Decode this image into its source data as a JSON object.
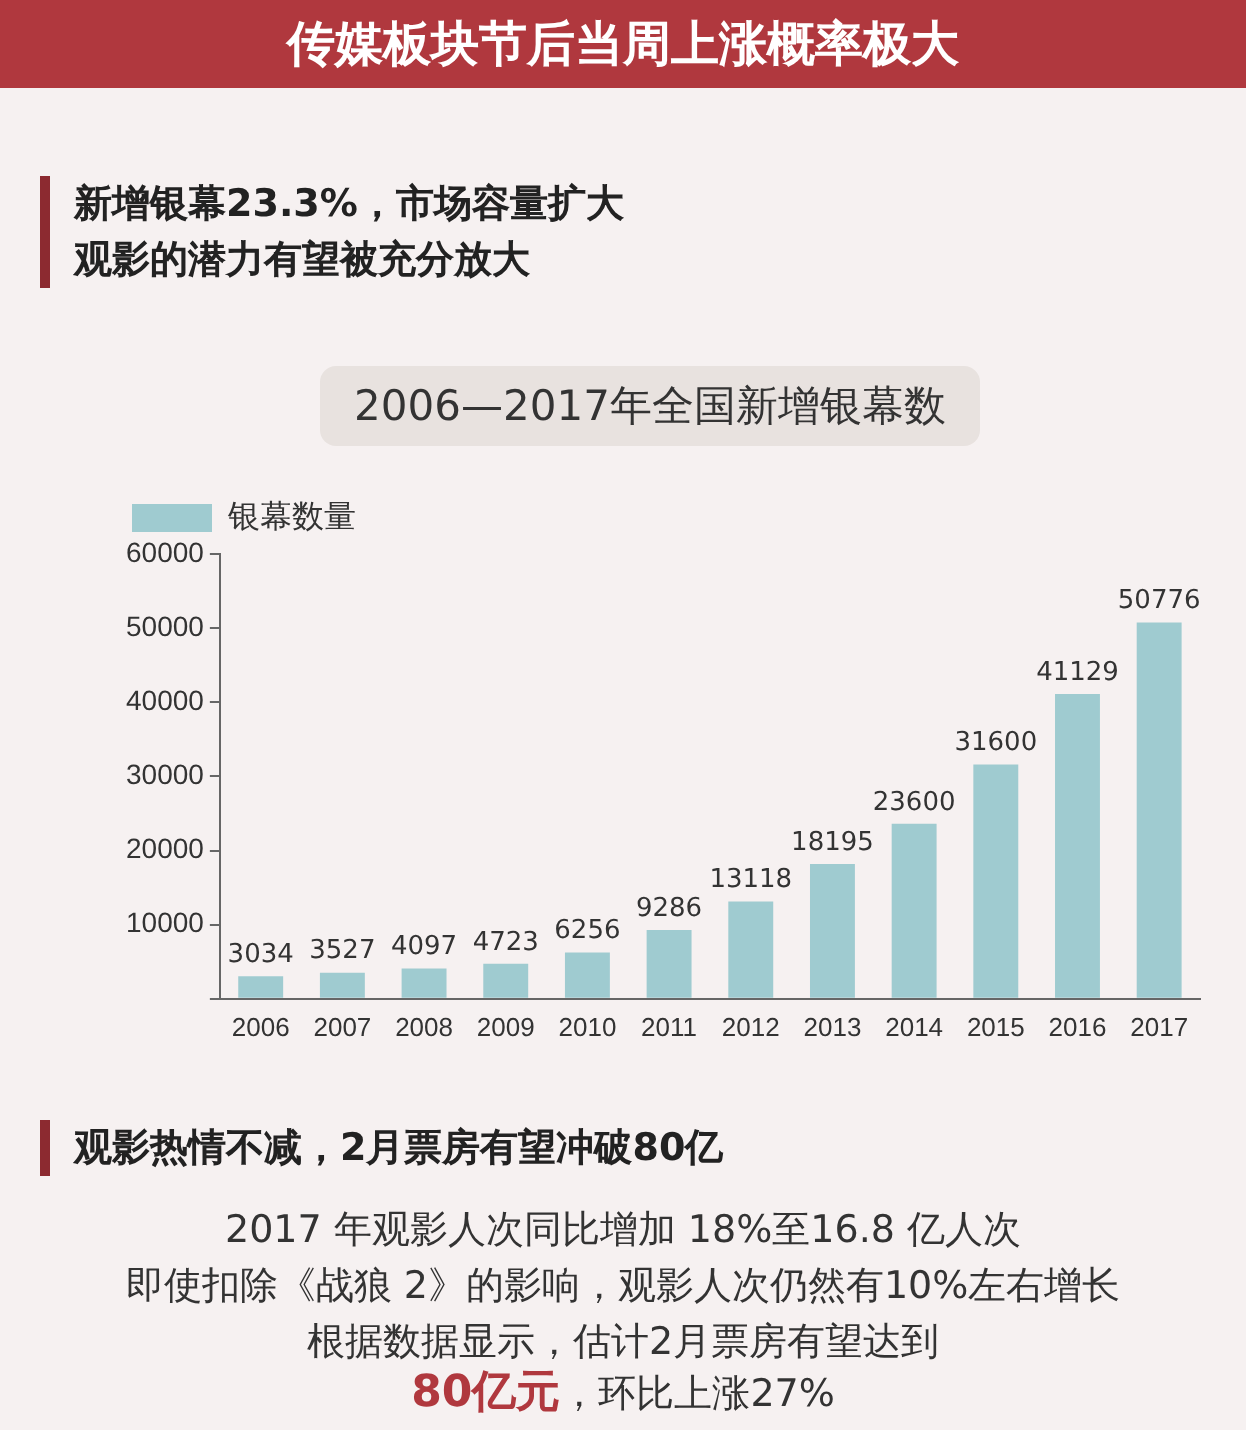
{
  "chart_data": {
    "type": "bar",
    "title": "2006—2017年全国新增银幕数",
    "categories": [
      "2006",
      "2007",
      "2008",
      "2009",
      "2010",
      "2011",
      "2012",
      "2013",
      "2014",
      "2015",
      "2016",
      "2017"
    ],
    "series": [
      {
        "name": "银幕数量",
        "color": "#9fcbd0",
        "values": [
          3034,
          3527,
          4097,
          4723,
          6256,
          9286,
          13118,
          18195,
          23600,
          31600,
          41129,
          50776
        ]
      }
    ],
    "ylim": [
      0,
      60000
    ],
    "yticks": [
      {
        "value": 0,
        "label": null
      },
      10000,
      20000,
      30000,
      40000,
      50000,
      60000
    ],
    "data_labels": true,
    "grid": false,
    "legend": "top left",
    "annotations": [
      "传媒板块节后当周上涨概率极大",
      "新增银幕23.3%，市场容量扩大",
      "观影的潜力有望被充分放大",
      "观影热情不减，2月票房有望冲破80亿",
      "2017 年观影人次同比增加 18%至16.8 亿人次",
      "即使扣除《战狼 2》的影响，观影人次仍然有10%左右增长",
      "根据数据显示，估计2月票房有望达到",
      "80亿元",
      "，环比上涨27%"
    ]
  }
}
